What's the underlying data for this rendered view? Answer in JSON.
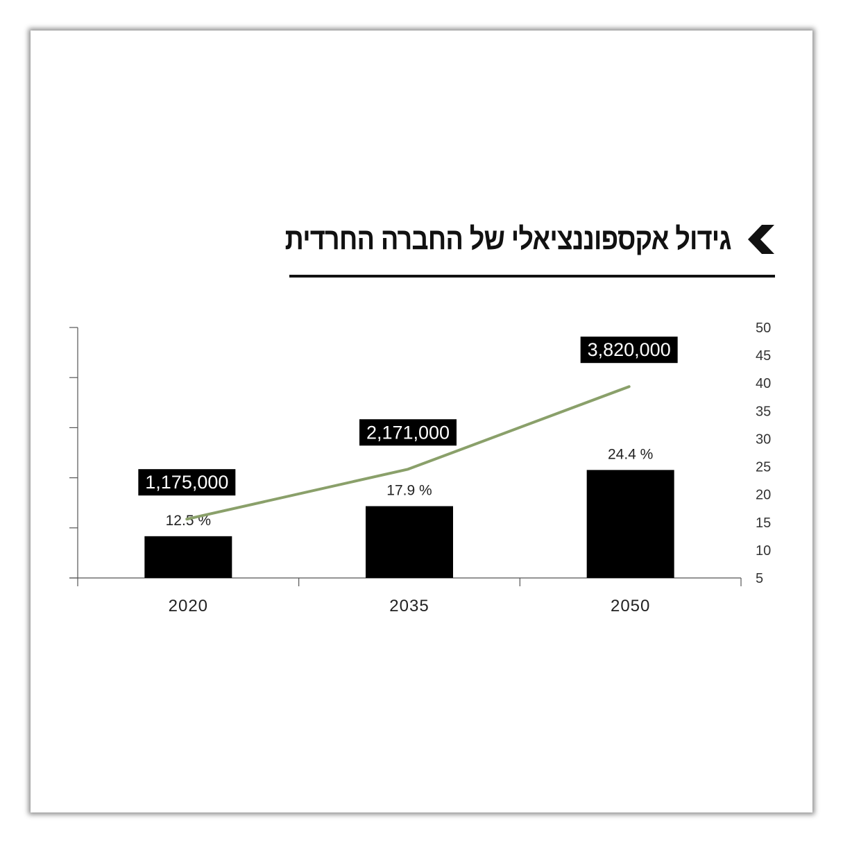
{
  "header": {
    "title": "גידול אקספוננציאלי של החברה החרדית",
    "chevron_icon": "chevron-left-icon"
  },
  "colors": {
    "bar": "#000000",
    "line": "#8aa06a",
    "label_bg": "#000000",
    "label_text": "#ffffff",
    "axis": "#555555"
  },
  "chart_data": {
    "type": "bar",
    "categories": [
      "2020",
      "2035",
      "2050"
    ],
    "series": [
      {
        "type": "bar",
        "axis": "right",
        "values": [
          12.5,
          17.9,
          24.4
        ],
        "labels": [
          "12.5  %",
          "17.9  %",
          "24.4  %"
        ]
      },
      {
        "type": "line",
        "axis": "left",
        "values": [
          1175000,
          2171000,
          3820000
        ],
        "labels": [
          "1,175,000",
          "2,171,000",
          "3,820,000"
        ]
      }
    ],
    "right_axis": {
      "ylim": [
        5,
        50
      ],
      "ticks": [
        "5",
        "10",
        "15",
        "20",
        "25",
        "30",
        "35",
        "40",
        "45",
        "50"
      ]
    },
    "left_axis": {
      "ylim": [
        0,
        5000000
      ],
      "tick_count": 5,
      "tick_labels_shown": false
    },
    "title": "גידול אקספוננציאלי של החברה החרדית",
    "xlabel": "",
    "ylabel": "",
    "grid": false,
    "legend": "none"
  }
}
